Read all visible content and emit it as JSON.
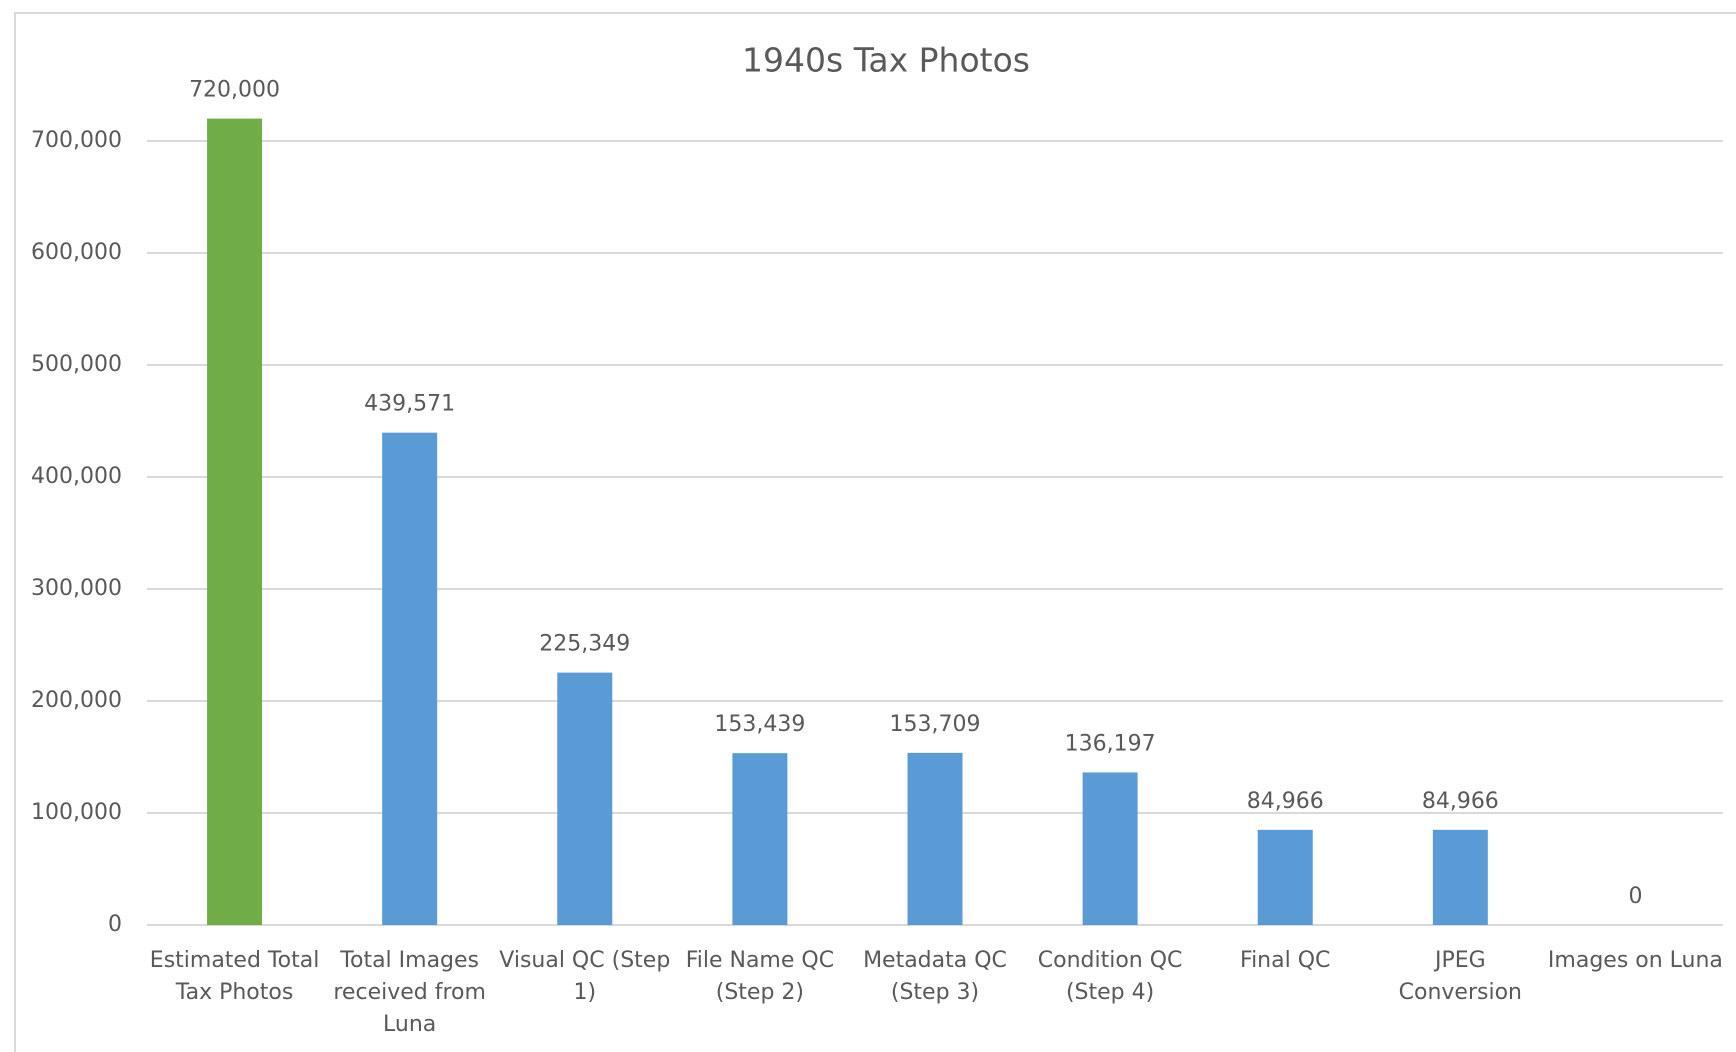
{
  "chart_data": {
    "type": "bar",
    "title": "1940s Tax Photos",
    "categories": [
      "Estimated Total Tax Photos",
      "Total Images received from Luna",
      "Visual QC (Step 1)",
      "File Name QC (Step 2)",
      "Metadata QC (Step 3)",
      "Condition QC (Step 4)",
      "Final QC",
      "JPEG Conversion",
      "Images on Luna"
    ],
    "values": [
      720000,
      439571,
      225349,
      153439,
      153709,
      136197,
      84966,
      84966,
      0
    ],
    "value_labels": [
      "720,000",
      "439,571",
      "225,349",
      "153,439",
      "153,709",
      "136,197",
      "84,966",
      "84,966",
      "0"
    ],
    "colors": [
      "#70ad47",
      "#5b9bd5",
      "#5b9bd5",
      "#5b9bd5",
      "#5b9bd5",
      "#5b9bd5",
      "#5b9bd5",
      "#5b9bd5",
      "#5b9bd5"
    ],
    "ylim": [
      0,
      700000
    ],
    "yticks": [
      0,
      {
        "value": 100000,
        "label": "100,000"
      },
      {
        "value": 200000,
        "label": "200,000"
      },
      {
        "value": 300000,
        "label": "300,000"
      },
      {
        "value": 400000,
        "label": "400,000"
      },
      {
        "value": 500000,
        "label": "500,000"
      },
      {
        "value": 600000,
        "label": "600,000"
      },
      {
        "value": 700000,
        "label": "700,000"
      }
    ],
    "grid": true
  }
}
